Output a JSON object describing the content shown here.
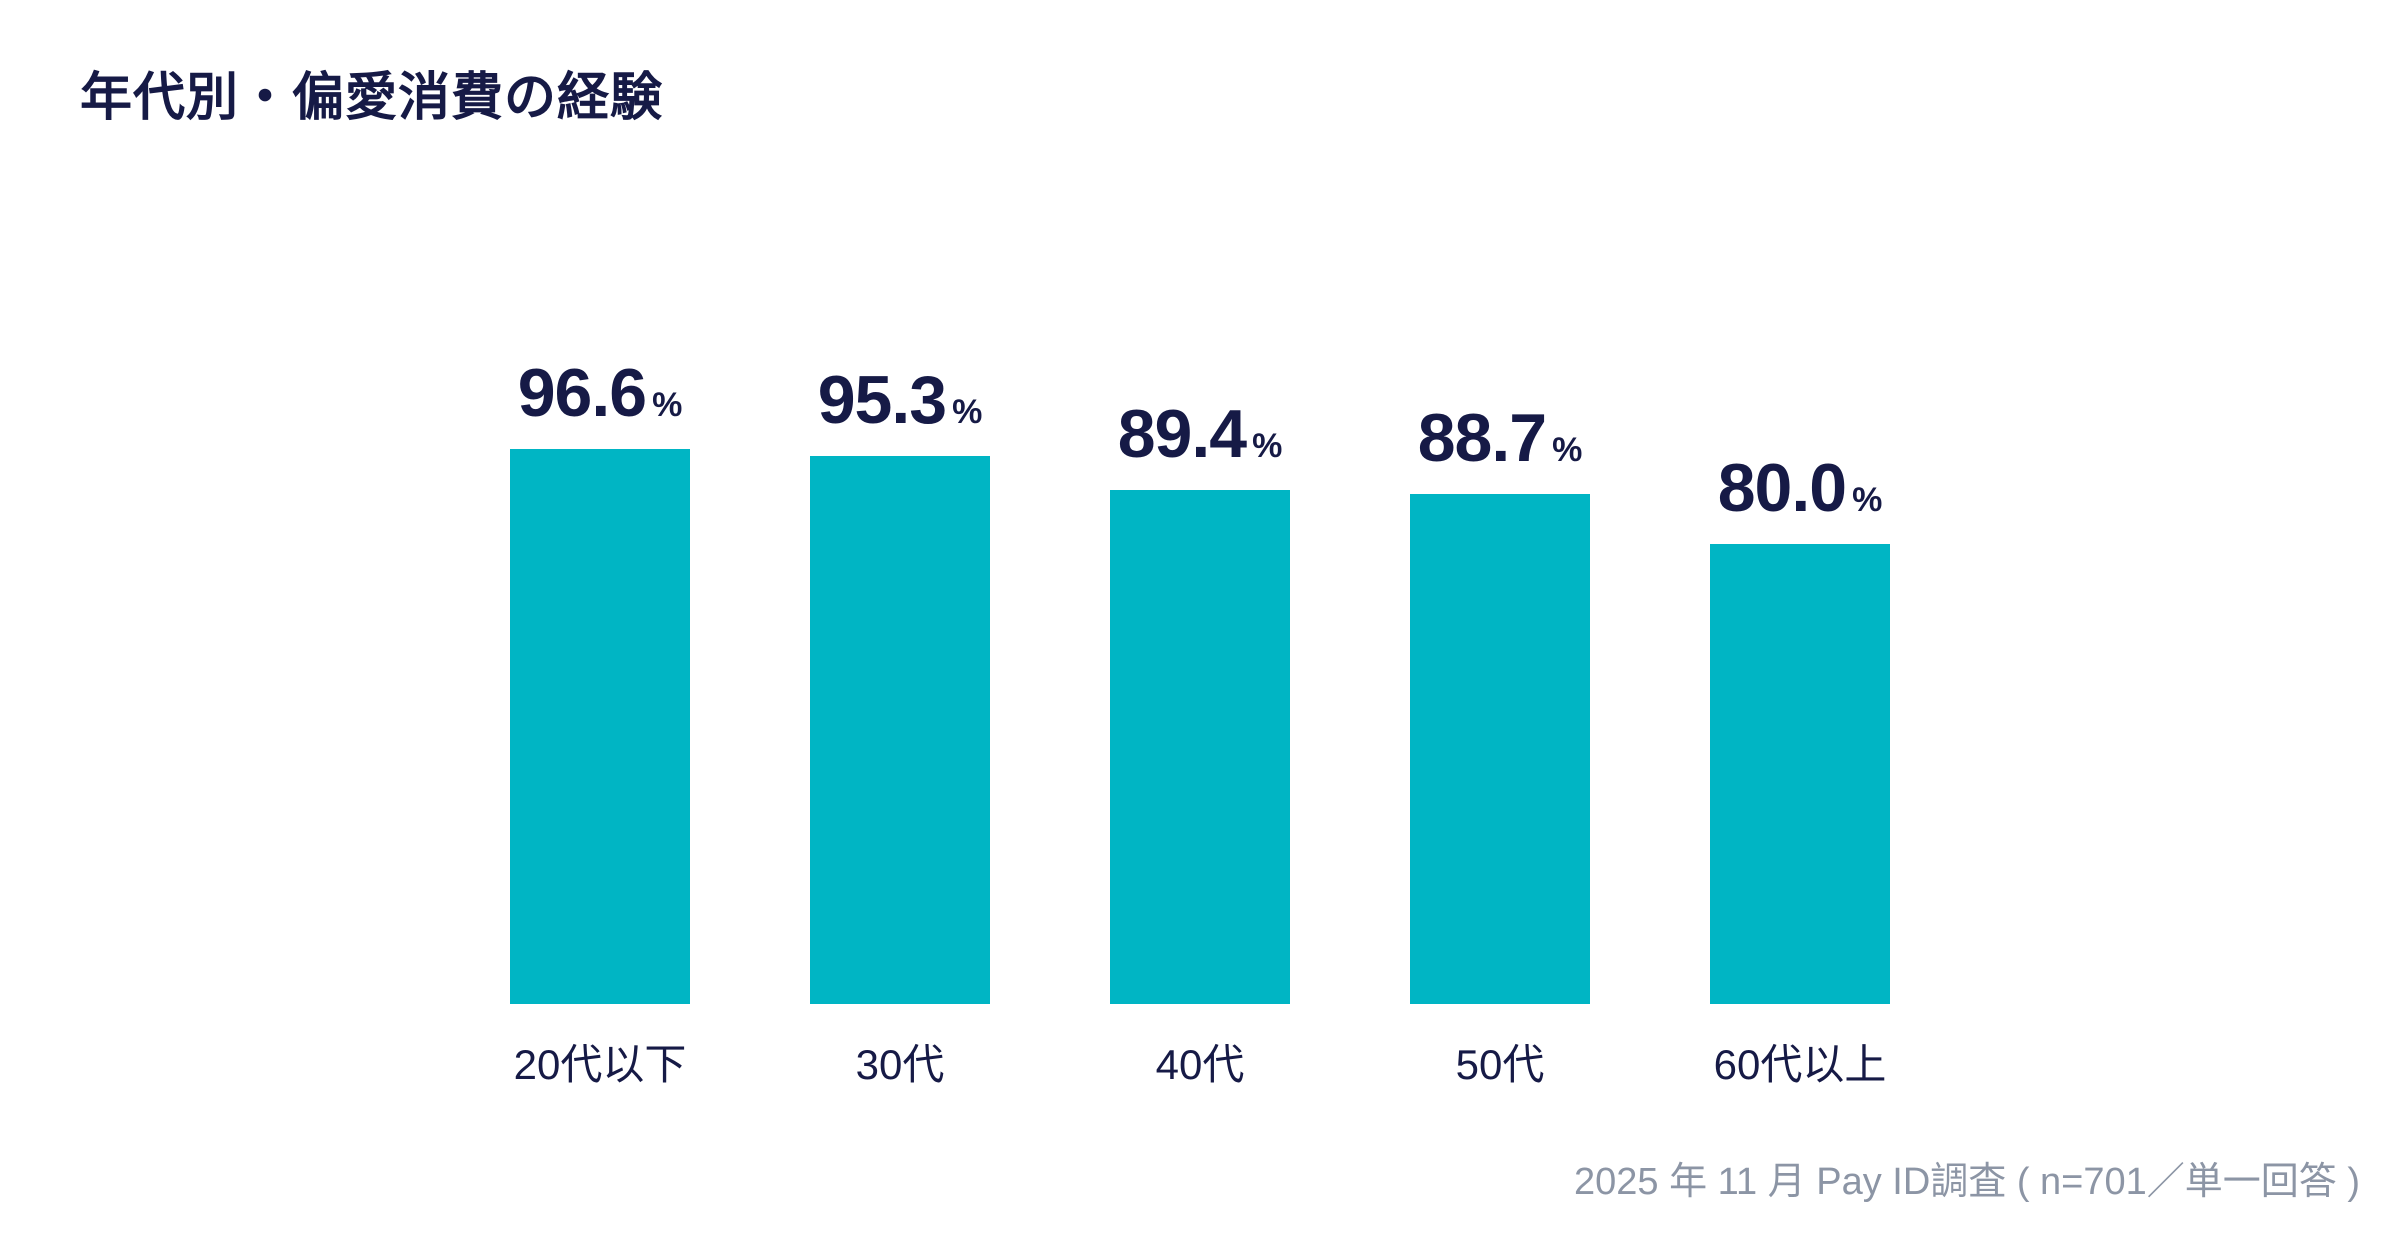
{
  "header": {
    "title": "年代別・偏愛消費の経験"
  },
  "chart_data": {
    "type": "bar",
    "title": "年代別・偏愛消費の経験",
    "categories": [
      "20代以下",
      "30代",
      "40代",
      "50代",
      "60代以上"
    ],
    "values": [
      96.6,
      95.3,
      89.4,
      88.7,
      80.0
    ],
    "value_labels": [
      "96.6",
      "95.3",
      "89.4",
      "88.7",
      "80.0"
    ],
    "unit": "%",
    "xlabel": "",
    "ylabel": "",
    "ylim": [
      0,
      100
    ],
    "grid": false,
    "legend": "none",
    "bar_color": "#00B5C4",
    "text_color": "#161A46",
    "source_color": "#8C95A5",
    "background_color": "#FFFFFF",
    "source_note": "2025 年 11 月 Pay ID調査 ( n=701／単一回答 )"
  },
  "footer": {
    "source_note": "2025 年 11 月 Pay ID調査 ( n=701／単一回答 )"
  }
}
